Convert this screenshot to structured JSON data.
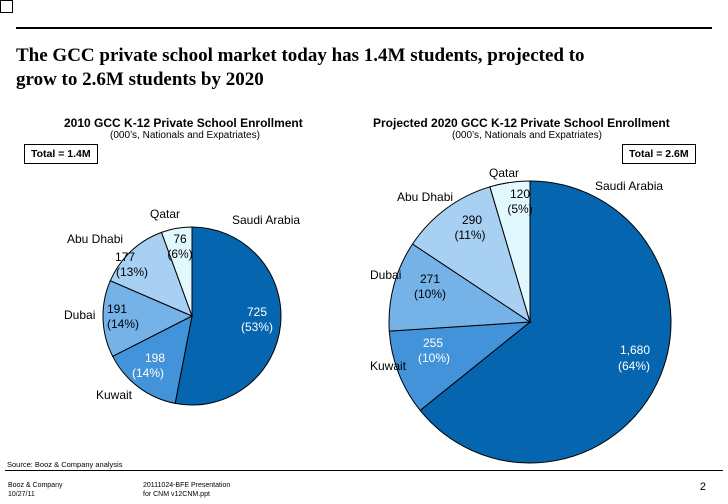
{
  "headline": "The GCC private school market today has 1.4M students, projected to\ngrow to 2.6M students by 2020",
  "colors": {
    "saudi": "#0565AF",
    "kuwait": "#4393DA",
    "dubai": "#75B2E8",
    "abu_dhabi": "#A8D0F3",
    "qatar": "#E2F8FF",
    "outline": "#000000"
  },
  "chart_data": [
    {
      "type": "pie",
      "title": "2010 GCC K-12 Private School Enrollment",
      "subtitle": "(000’s, Nationals and Expatriates)",
      "total_label": "Total = 1.4M",
      "slices": [
        {
          "name": "Saudi Arabia",
          "value": 725,
          "value_label": "725",
          "pct_label": "(53%)"
        },
        {
          "name": "Kuwait",
          "value": 198,
          "value_label": "198",
          "pct_label": "(14%)"
        },
        {
          "name": "Dubai",
          "value": 191,
          "value_label": "191",
          "pct_label": "(14%)"
        },
        {
          "name": "Abu Dhabi",
          "value": 177,
          "value_label": "177",
          "pct_label": "(13%)"
        },
        {
          "name": "Qatar",
          "value": 76,
          "value_label": "76",
          "pct_label": "(6%)"
        }
      ]
    },
    {
      "type": "pie",
      "title": "Projected 2020 GCC K-12 Private School Enrollment",
      "subtitle": "(000’s, Nationals and Expatriates)",
      "total_label": "Total = 2.6M",
      "slices": [
        {
          "name": "Saudi Arabia",
          "value": 1680,
          "value_label": "1,680",
          "pct_label": "(64%)"
        },
        {
          "name": "Kuwait",
          "value": 255,
          "value_label": "255",
          "pct_label": "(10%)"
        },
        {
          "name": "Dubai",
          "value": 271,
          "value_label": "271",
          "pct_label": "(10%)"
        },
        {
          "name": "Abu Dhabi",
          "value": 290,
          "value_label": "290",
          "pct_label": "(11%)"
        },
        {
          "name": "Qatar",
          "value": 120,
          "value_label": "120",
          "pct_label": "(5%)"
        }
      ]
    }
  ],
  "footer": {
    "source": "Source:    Booz & Company analysis",
    "company": "Booz & Company\n10/27/11",
    "file": "20111024-BFE Presentation\nfor CNM v12CNM.ppt",
    "page": "2"
  }
}
